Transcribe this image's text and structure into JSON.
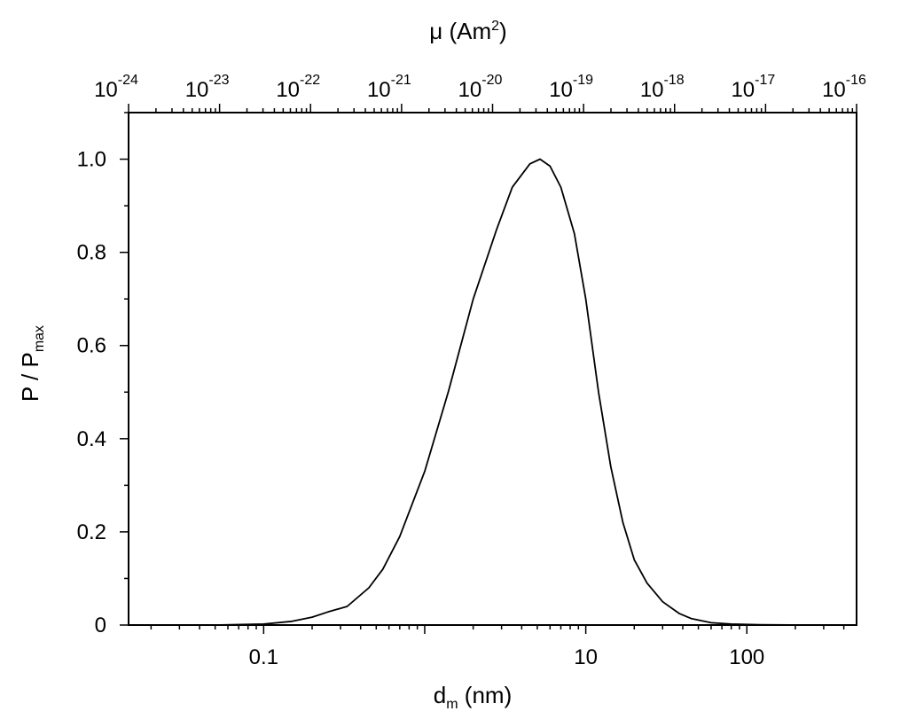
{
  "chart_data": {
    "type": "line",
    "xlabel": {
      "main": "d",
      "sub": "m",
      "unit": " (nm)"
    },
    "ylabel": {
      "main": "P / P",
      "sub": "max"
    },
    "top_xlabel": {
      "main": "μ (Am",
      "sup": "2",
      "close": ")"
    },
    "x_scale": "log",
    "xlim": [
      0.0145,
      480
    ],
    "ylim": [
      0,
      1.1
    ],
    "x_ticks": [
      {
        "value": 0.1,
        "label": "0.1"
      },
      {
        "value": 10,
        "label": "10"
      },
      {
        "value": 100,
        "label": "100"
      }
    ],
    "y_ticks": [
      {
        "value": 0,
        "label": "0"
      },
      {
        "value": 0.2,
        "label": "0.2"
      },
      {
        "value": 0.4,
        "label": "0.4"
      },
      {
        "value": 0.6,
        "label": "0.6"
      },
      {
        "value": 0.8,
        "label": "0.8"
      },
      {
        "value": 1.0,
        "label": "1.0"
      }
    ],
    "top_x_ticks": [
      {
        "value": 1e-24,
        "base": "10",
        "exp": "-24"
      },
      {
        "value": 1e-23,
        "base": "10",
        "exp": "-23"
      },
      {
        "value": 1e-22,
        "base": "10",
        "exp": "-22"
      },
      {
        "value": 1e-21,
        "base": "10",
        "exp": "-21"
      },
      {
        "value": 1e-20,
        "base": "10",
        "exp": "-20"
      },
      {
        "value": 1e-19,
        "base": "10",
        "exp": "-19"
      },
      {
        "value": 1e-18,
        "base": "10",
        "exp": "-18"
      },
      {
        "value": 1e-17,
        "base": "10",
        "exp": "-17"
      },
      {
        "value": 1e-16,
        "base": "10",
        "exp": "-16"
      }
    ],
    "top_xlim": [
      1e-24,
      1e-16
    ],
    "series": [
      {
        "color": "#000000",
        "x": [
          0.0145,
          0.05,
          0.1,
          0.15,
          0.2,
          0.25,
          0.33,
          0.45,
          0.55,
          0.7,
          1.0,
          1.4,
          2.0,
          2.8,
          3.5,
          4.5,
          5.2,
          6.0,
          7.0,
          8.5,
          10,
          12,
          14.3,
          17,
          20,
          24,
          30,
          38,
          45,
          60,
          80,
          120,
          200,
          300,
          480
        ],
        "y": [
          0.0,
          0.0,
          0.002,
          0.008,
          0.017,
          0.028,
          0.04,
          0.08,
          0.12,
          0.19,
          0.33,
          0.5,
          0.7,
          0.85,
          0.94,
          0.99,
          1.0,
          0.985,
          0.94,
          0.84,
          0.7,
          0.5,
          0.34,
          0.22,
          0.14,
          0.09,
          0.05,
          0.025,
          0.014,
          0.005,
          0.002,
          0.0005,
          0.0,
          0.0,
          0.0
        ]
      }
    ]
  }
}
